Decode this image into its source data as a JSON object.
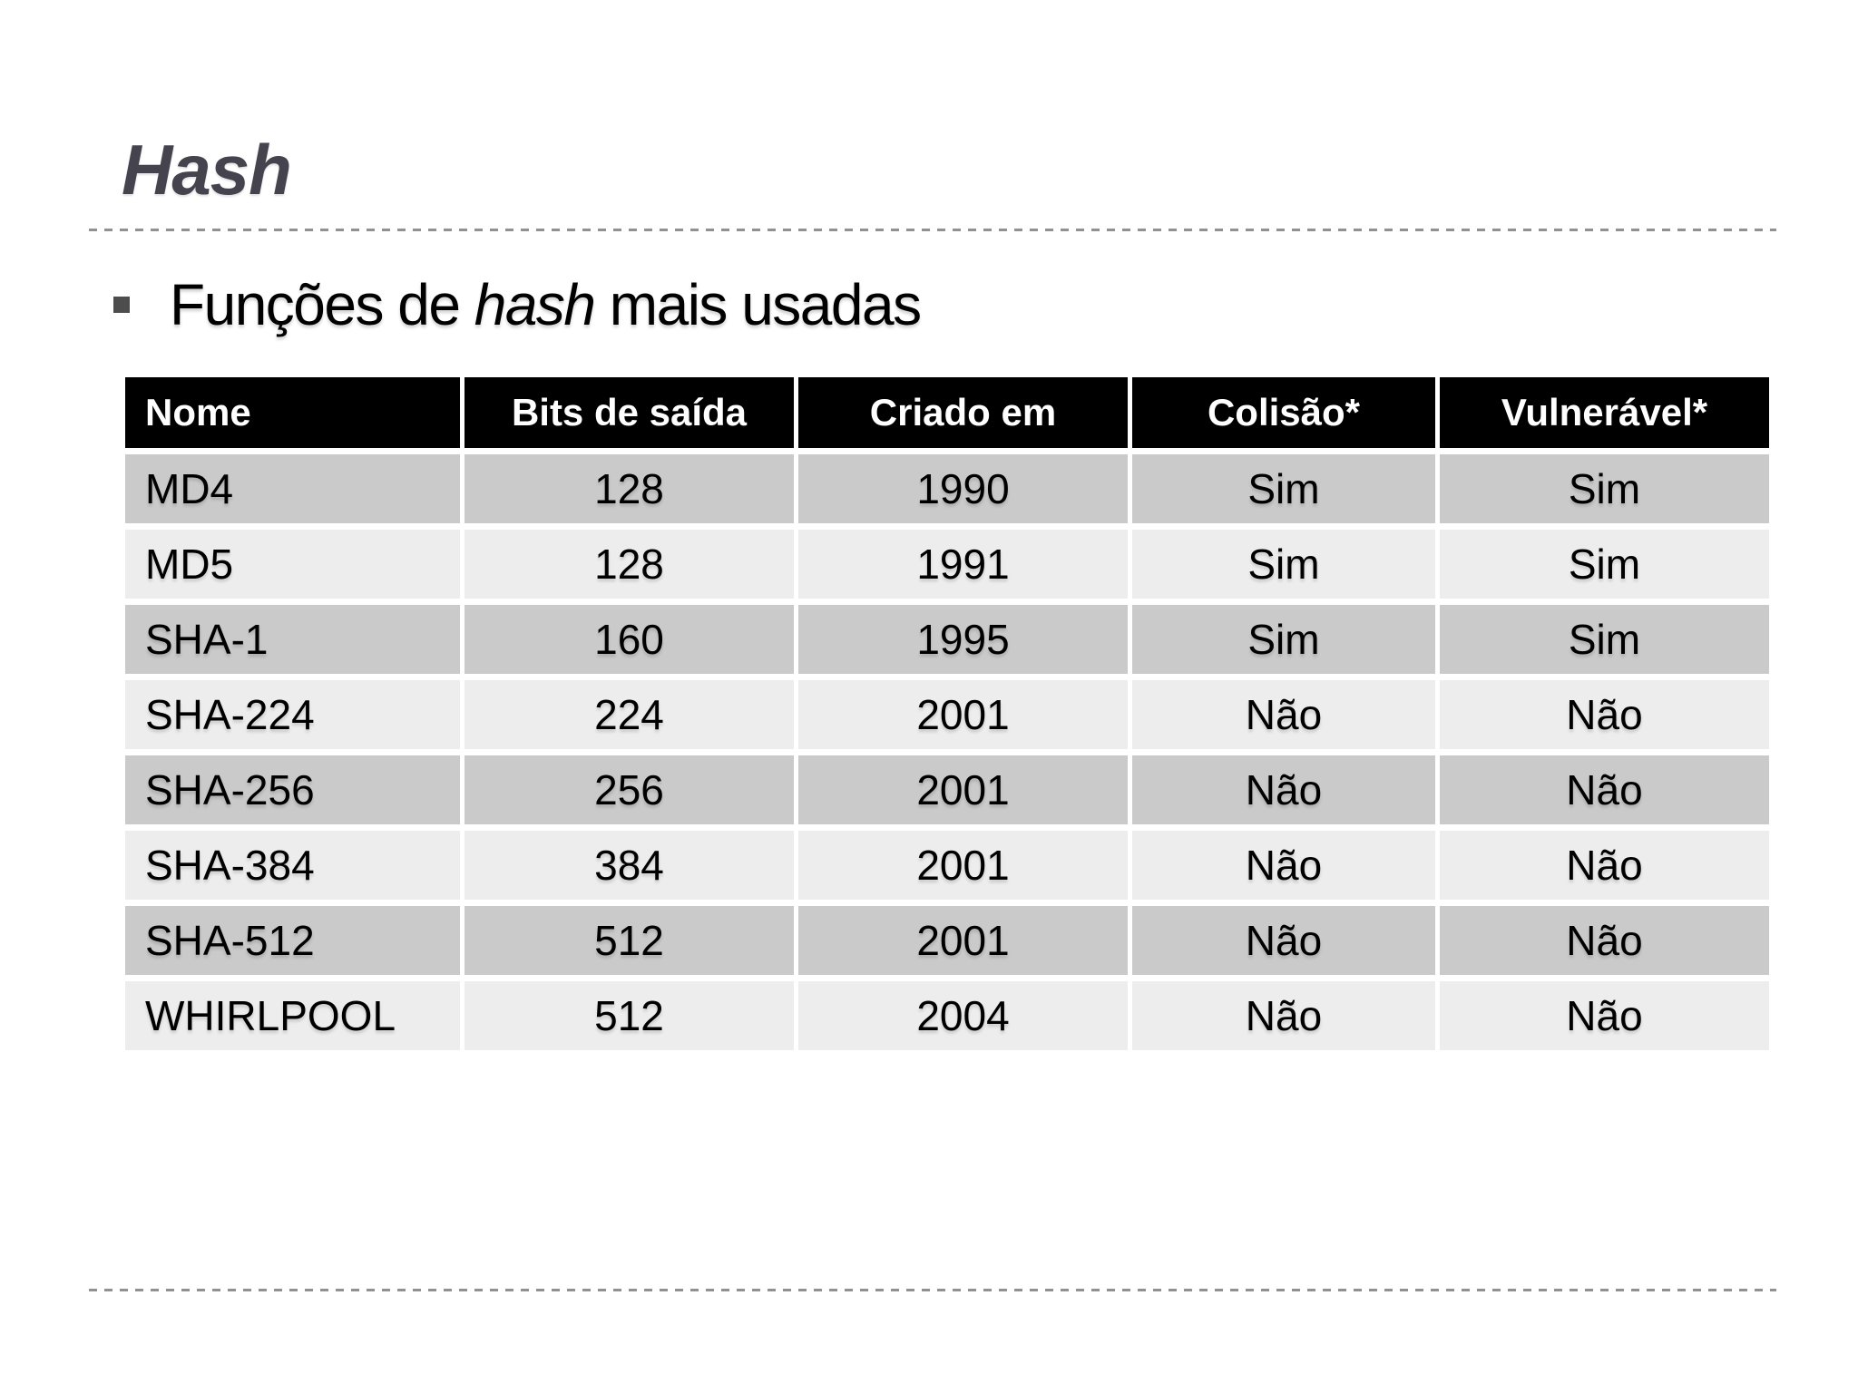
{
  "slide": {
    "title": "Hash",
    "bullet": {
      "prefix": "Funções de ",
      "italic": "hash",
      "suffix": " mais usadas"
    }
  },
  "table": {
    "headers": [
      "Nome",
      "Bits de saída",
      "Criado em",
      "Colisão*",
      "Vulnerável*"
    ],
    "rows": [
      {
        "name": "MD4",
        "bits": "128",
        "year": "1990",
        "collision": "Sim",
        "vulnerable": "Sim"
      },
      {
        "name": "MD5",
        "bits": "128",
        "year": "1991",
        "collision": "Sim",
        "vulnerable": "Sim"
      },
      {
        "name": "SHA-1",
        "bits": "160",
        "year": "1995",
        "collision": "Sim",
        "vulnerable": "Sim"
      },
      {
        "name": "SHA-224",
        "bits": "224",
        "year": "2001",
        "collision": "Não",
        "vulnerable": "Não"
      },
      {
        "name": "SHA-256",
        "bits": "256",
        "year": "2001",
        "collision": "Não",
        "vulnerable": "Não"
      },
      {
        "name": "SHA-384",
        "bits": "384",
        "year": "2001",
        "collision": "Não",
        "vulnerable": "Não"
      },
      {
        "name": "SHA-512",
        "bits": "512",
        "year": "2001",
        "collision": "Não",
        "vulnerable": "Não"
      },
      {
        "name": "WHIRLPOOL",
        "bits": "512",
        "year": "2004",
        "collision": "Não",
        "vulnerable": "Não"
      }
    ]
  },
  "colors": {
    "title_text": "#45444e",
    "header_bg": "#000000",
    "header_text": "#ffffff",
    "row_dark": "#cacaca",
    "row_light": "#ededed",
    "dashed_line": "#919191",
    "bullet_square": "#4d4d4d",
    "body_text": "#000000",
    "background": "#ffffff"
  }
}
